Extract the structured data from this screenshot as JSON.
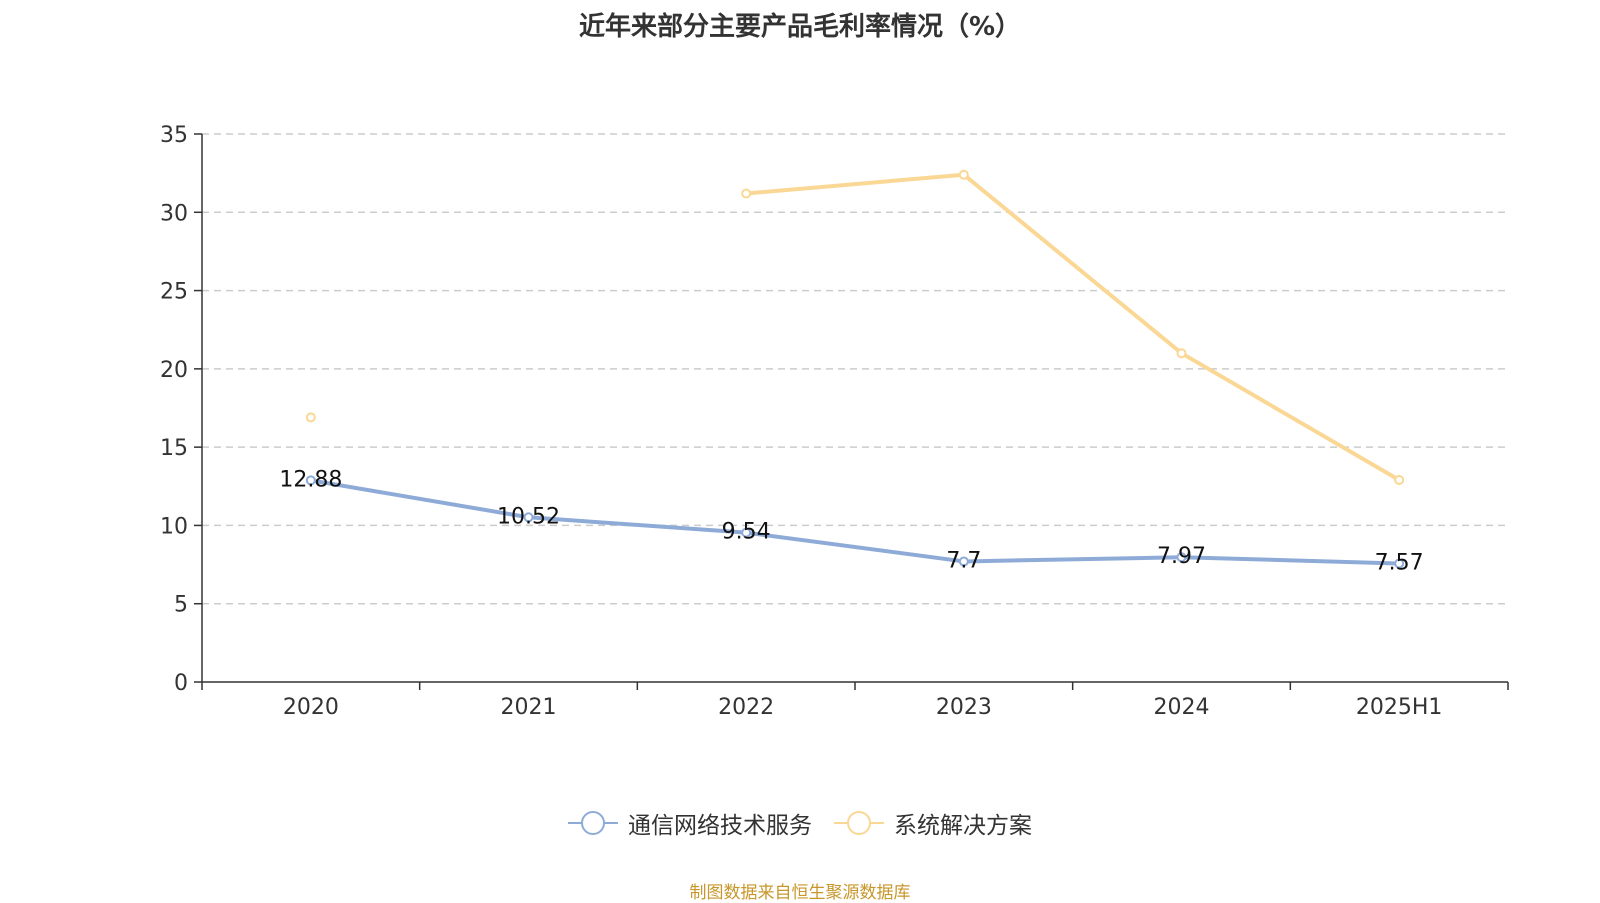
{
  "title": "近年来部分主要产品毛利率情况（%）",
  "source_note": "制图数据来自恒生聚源数据库",
  "colors": {
    "series_1": "#8eabd8",
    "series_2": "#fad795",
    "grid": "#cccccc",
    "axis": "#333333"
  },
  "chart_data": {
    "type": "line",
    "title": "近年来部分主要产品毛利率情况（%）",
    "categories": [
      "2020",
      "2021",
      "2022",
      "2023",
      "2024",
      "2025H1"
    ],
    "ylim": [
      0,
      35
    ],
    "yticks": [
      0,
      5,
      10,
      15,
      20,
      25,
      30,
      35
    ],
    "grid": true,
    "legend_position": "bottom",
    "series": [
      {
        "name": "通信网络技术服务",
        "color": "#8eabd8",
        "values": [
          12.88,
          10.52,
          9.54,
          7.7,
          7.97,
          7.57
        ],
        "labels": [
          "12.88",
          "10.52",
          "9.54",
          "7.7",
          "7.97",
          "7.57"
        ],
        "show_labels": true
      },
      {
        "name": "系统解决方案",
        "color": "#fad795",
        "values": [
          16.9,
          null,
          31.2,
          32.4,
          21.0,
          12.9
        ],
        "show_labels": false
      }
    ]
  }
}
